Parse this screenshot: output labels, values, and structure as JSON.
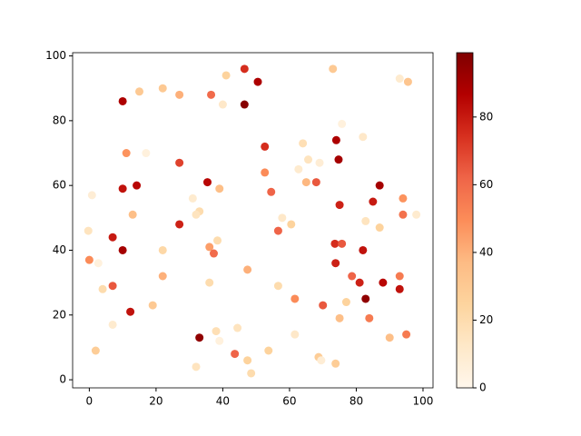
{
  "chart_data": {
    "type": "scatter",
    "x": [
      10,
      15,
      22,
      27,
      36.5,
      41,
      40,
      46.5,
      50.5,
      46.5,
      73,
      93,
      95.5,
      75.7,
      82,
      64,
      52.6,
      69,
      65.6,
      62.7,
      65,
      68,
      74,
      74.7,
      11.1,
      17,
      27,
      0.8,
      10,
      14.2,
      35.4,
      39,
      31,
      52.6,
      54.5,
      13,
      33,
      32,
      57.8,
      60.5,
      56.6,
      27,
      -0.3,
      7,
      10,
      22,
      36,
      37.3,
      38.4,
      0,
      2.7,
      4,
      7,
      22,
      47.4,
      36,
      56.6,
      61.6,
      70,
      7,
      12.3,
      19,
      1.9,
      38,
      39,
      33,
      32,
      44.4,
      43.6,
      47.4,
      48.5,
      53.7,
      61.6,
      68.7,
      69.5,
      73.8,
      75,
      77,
      73.6,
      75.7,
      73.8,
      78.7,
      81,
      82.8,
      83.9,
      82,
      82.8,
      87,
      85,
      87,
      75,
      88,
      90,
      93,
      93,
      94,
      94,
      98,
      95
    ],
    "y": [
      86,
      89,
      90,
      88,
      88,
      94,
      85,
      96,
      92,
      85,
      96,
      93,
      92,
      79,
      75,
      73,
      72,
      67,
      68,
      65,
      61,
      61,
      74,
      68,
      70,
      70,
      67,
      57,
      59,
      60,
      61,
      59,
      56,
      64,
      58,
      51,
      52,
      51,
      50,
      48,
      46,
      48,
      46,
      44,
      40,
      40,
      41,
      39,
      43,
      37,
      36,
      28,
      29,
      32,
      34,
      30,
      29,
      25,
      23,
      17,
      21,
      23,
      9,
      15,
      12,
      13,
      4,
      16,
      8,
      6,
      2,
      9,
      14,
      7,
      6,
      5,
      19,
      24,
      42,
      42,
      36,
      32,
      30,
      25,
      19,
      40,
      49,
      47,
      55,
      60,
      54,
      30,
      13,
      32,
      28,
      51,
      56,
      51,
      14
    ],
    "c": [
      88,
      30,
      30,
      40,
      60,
      25,
      12,
      75,
      88,
      97,
      30,
      10,
      32,
      5,
      12,
      18,
      75,
      8,
      15,
      10,
      38,
      65,
      88,
      90,
      48,
      5,
      70,
      8,
      82,
      85,
      85,
      35,
      10,
      50,
      62,
      35,
      20,
      15,
      12,
      25,
      62,
      78,
      15,
      80,
      90,
      22,
      45,
      60,
      20,
      50,
      5,
      20,
      65,
      40,
      40,
      20,
      20,
      50,
      65,
      10,
      82,
      30,
      28,
      18,
      5,
      95,
      15,
      15,
      62,
      25,
      20,
      25,
      12,
      28,
      8,
      28,
      35,
      25,
      75,
      65,
      78,
      62,
      78,
      95,
      55,
      82,
      15,
      25,
      80,
      90,
      78,
      85,
      35,
      55,
      82,
      58,
      48,
      10,
      55
    ],
    "colormap": "OrRd",
    "clim": [
      0,
      99
    ],
    "cticks": [
      0,
      20,
      40,
      60,
      80
    ],
    "xlim": [
      -5,
      103
    ],
    "ylim": [
      -2.5,
      101
    ],
    "xticks": [
      0,
      20,
      40,
      60,
      80,
      100
    ],
    "yticks": [
      0,
      20,
      40,
      60,
      80,
      100
    ]
  }
}
